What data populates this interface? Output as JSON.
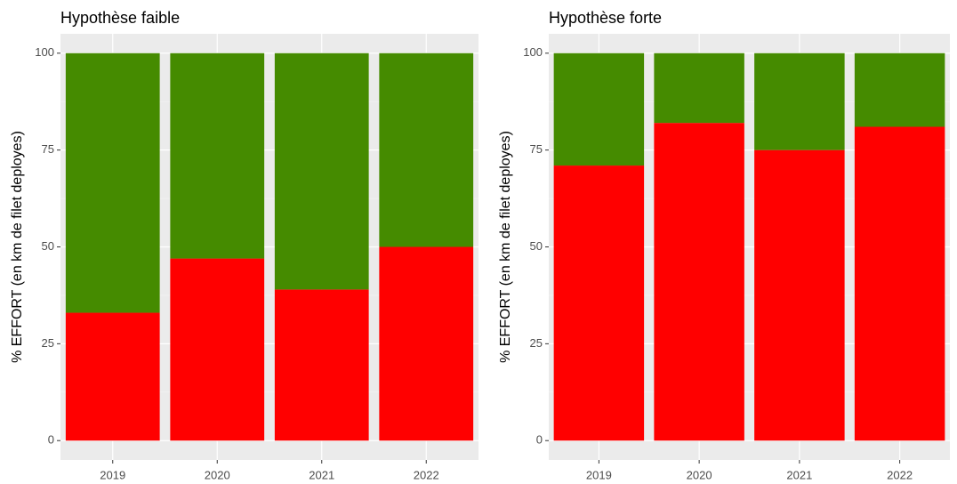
{
  "chart_data": [
    {
      "type": "stacked_bar",
      "title": "Hypothèse faible",
      "y_label": "% EFFORT (en km de filet deployes)",
      "categories": [
        "2019",
        "2020",
        "2021",
        "2022"
      ],
      "series": [
        {
          "color": "#ff0000",
          "values": [
            33,
            47,
            39,
            50
          ]
        },
        {
          "color": "#458b00",
          "values": [
            67,
            53,
            61,
            50
          ]
        }
      ],
      "ylim": [
        -5,
        105
      ],
      "yticks": [
        0,
        25,
        50,
        75,
        100
      ],
      "yminor": [
        12.5,
        37.5,
        62.5,
        87.5
      ],
      "grid": true
    },
    {
      "type": "stacked_bar",
      "title": "Hypothèse forte",
      "y_label": "% EFFORT (en km de filet deployes)",
      "categories": [
        "2019",
        "2020",
        "2021",
        "2022"
      ],
      "series": [
        {
          "color": "#ff0000",
          "values": [
            71,
            82,
            75,
            81
          ]
        },
        {
          "color": "#458b00",
          "values": [
            29,
            18,
            25,
            19
          ]
        }
      ],
      "ylim": [
        -5,
        105
      ],
      "yticks": [
        0,
        25,
        50,
        75,
        100
      ],
      "yminor": [
        12.5,
        37.5,
        62.5,
        87.5
      ],
      "grid": true
    }
  ]
}
